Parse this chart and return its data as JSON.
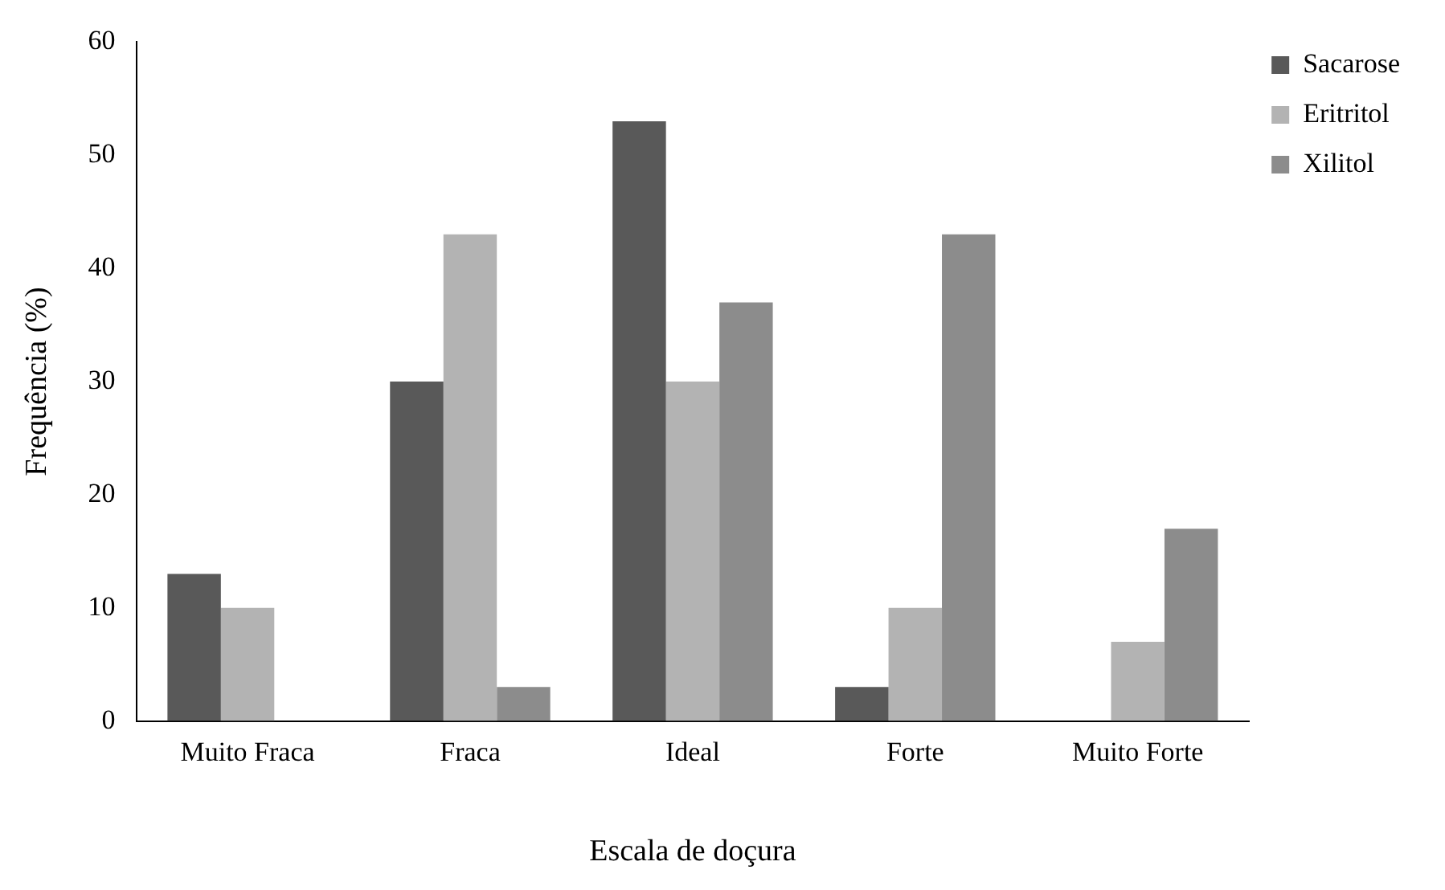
{
  "chart_data": {
    "type": "bar",
    "xlabel": "Escala de doçura",
    "ylabel": "Frequência (%)",
    "categories": [
      "Muito Fraca",
      "Fraca",
      "Ideal",
      "Forte",
      "Muito Forte"
    ],
    "series": [
      {
        "name": "Sacarose",
        "color": "#595959",
        "values": [
          13,
          30,
          53,
          3,
          0
        ]
      },
      {
        "name": "Eritritol",
        "color": "#b3b3b3",
        "values": [
          10,
          43,
          30,
          10,
          7
        ]
      },
      {
        "name": "Xilitol",
        "color": "#8c8c8c",
        "values": [
          0,
          3,
          37,
          43,
          17
        ]
      }
    ],
    "ylim": [
      0,
      60
    ],
    "yticks": [
      0,
      10,
      20,
      30,
      40,
      50,
      60
    ],
    "grid": false,
    "legend": "top right"
  }
}
